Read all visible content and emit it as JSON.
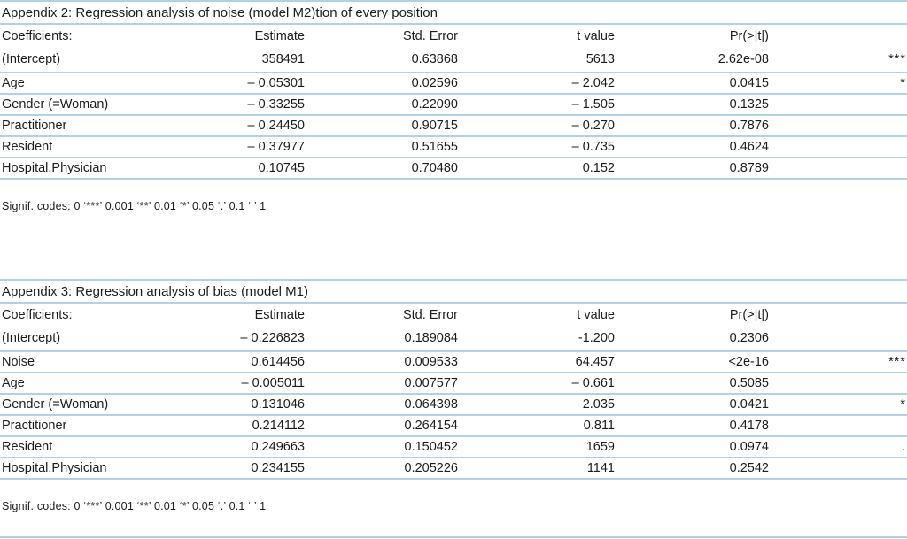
{
  "page": {
    "background": "#ffffff",
    "rule_color": "#aed2e7",
    "text_color": "#1d1d1b"
  },
  "tables": [
    {
      "title": "Appendix 2: Regression analysis of noise (model M2)tion of every position",
      "headers": {
        "label": "Coefficients:",
        "estimate": "Estimate",
        "std_error": "Std. Error",
        "t_value": "t value",
        "p_value": "Pr(>|t|)",
        "signif": ""
      },
      "rows": [
        {
          "label": "(Intercept)",
          "estimate": "358491",
          "std_error": "0.63868",
          "t_value": "5613",
          "p_value": "2.62e-08",
          "signif": "***"
        },
        {
          "label": "Age",
          "estimate": "– 0.05301",
          "std_error": "0.02596",
          "t_value": "– 2.042",
          "p_value": "0.0415",
          "signif": "*"
        },
        {
          "label": "Gender (=Woman)",
          "estimate": "– 0.33255",
          "std_error": "0.22090",
          "t_value": "– 1.505",
          "p_value": "0.1325",
          "signif": ""
        },
        {
          "label": "Practitioner",
          "estimate": "– 0.24450",
          "std_error": "0.90715",
          "t_value": "– 0.270",
          "p_value": "0.7876",
          "signif": ""
        },
        {
          "label": "Resident",
          "estimate": "– 0.37977",
          "std_error": "0.51655",
          "t_value": "– 0.735",
          "p_value": "0.4624",
          "signif": ""
        },
        {
          "label": "Hospital.Physician",
          "estimate": "0.10745",
          "std_error": "0.70480",
          "t_value": "0.152",
          "p_value": "0.8789",
          "signif": ""
        }
      ],
      "signif_note": "Signif. codes:  0 ‘***’ 0.001 ‘**’ 0.01 ‘*’ 0.05 ‘.’ 0.1 ‘ ’ 1"
    },
    {
      "title": "Appendix 3: Regression analysis of bias (model M1)",
      "headers": {
        "label": "Coefficients:",
        "estimate": "Estimate",
        "std_error": "Std. Error",
        "t_value": "t value",
        "p_value": "Pr(>|t|)",
        "signif": ""
      },
      "rows": [
        {
          "label": "(Intercept)",
          "estimate": "– 0.226823",
          "std_error": "0.189084",
          "t_value": "-1.200",
          "p_value": "0.2306",
          "signif": ""
        },
        {
          "label": "Noise",
          "estimate": "0.614456",
          "std_error": "0.009533",
          "t_value": "64.457",
          "p_value": "<2e-16",
          "signif": "***"
        },
        {
          "label": "Age",
          "estimate": "– 0.005011",
          "std_error": "0.007577",
          "t_value": "– 0.661",
          "p_value": "0.5085",
          "signif": ""
        },
        {
          "label": "Gender (=Woman)",
          "estimate": "0.131046",
          "std_error": "0.064398",
          "t_value": "2.035",
          "p_value": "0.0421",
          "signif": "*"
        },
        {
          "label": "Practitioner",
          "estimate": "0.214112",
          "std_error": "0.264154",
          "t_value": "0.811",
          "p_value": "0.4178",
          "signif": ""
        },
        {
          "label": "Resident",
          "estimate": "0.249663",
          "std_error": "0.150452",
          "t_value": "1659",
          "p_value": "0.0974",
          "signif": "."
        },
        {
          "label": "Hospital.Physician",
          "estimate": "0.234155",
          "std_error": "0.205226",
          "t_value": "1141",
          "p_value": "0.2542",
          "signif": ""
        }
      ],
      "signif_note": "Signif. codes:  0 ‘***’ 0.001 ‘**’ 0.01 ‘*’ 0.05 ‘.’ 0.1 ‘ ’ 1"
    }
  ]
}
